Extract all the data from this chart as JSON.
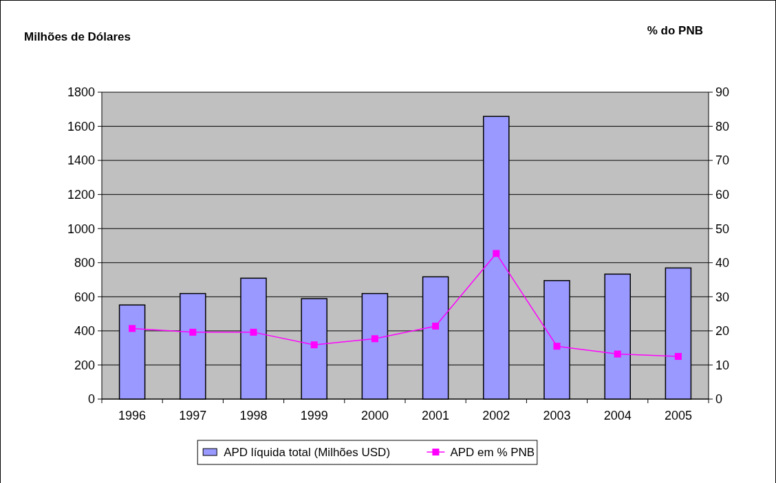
{
  "chart_data": {
    "type": "bar",
    "ylabel": "Milhões de Dólares",
    "y2label": "% do PNB",
    "categories": [
      "1996",
      "1997",
      "1998",
      "1999",
      "2000",
      "2001",
      "2002",
      "2003",
      "2004",
      "2005"
    ],
    "series": [
      {
        "name": "APD líquida total (Milhões USD)",
        "color": "#9999ff",
        "values": [
          552,
          619,
          709,
          589,
          619,
          717,
          1658,
          695,
          733,
          769
        ]
      },
      {
        "name": "APD em % PNB",
        "type": "line",
        "axis": "y2",
        "color": "#ff00ff",
        "marker": "square",
        "values": [
          20.7,
          19.6,
          19.6,
          15.9,
          17.7,
          21.4,
          42.7,
          15.5,
          13.2,
          12.5
        ]
      }
    ],
    "ylim": [
      0,
      1800
    ],
    "yticks": [
      0,
      200,
      400,
      600,
      800,
      1000,
      1200,
      1400,
      1600,
      1800
    ],
    "y2lim": [
      0,
      90
    ],
    "y2ticks": [
      0,
      10,
      20,
      30,
      40,
      50,
      60,
      70,
      80,
      90
    ],
    "grid": "y",
    "legend": "bottom"
  }
}
